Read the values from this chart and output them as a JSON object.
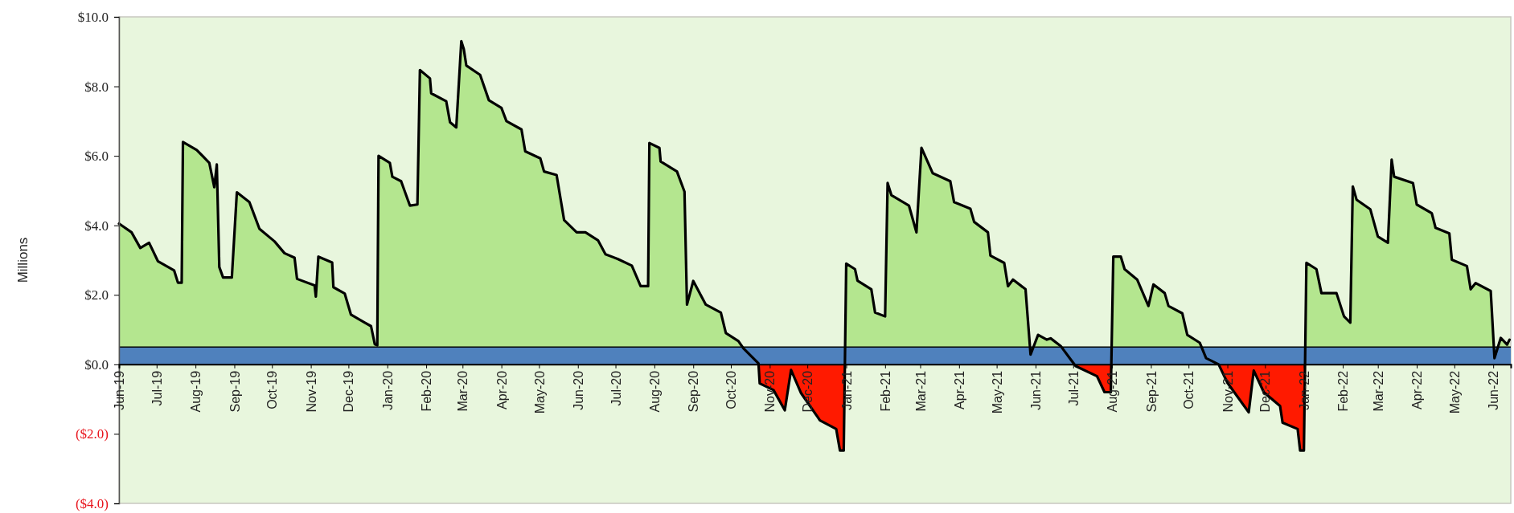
{
  "chart_data": {
    "type": "area",
    "ylabel": "Millions",
    "xlim": [
      "2019-06-01",
      "2022-06-15"
    ],
    "ylim": [
      -4,
      10
    ],
    "yticks": [
      {
        "value": -4,
        "label": "($4.0)"
      },
      {
        "value": -2,
        "label": "($2.0)"
      },
      {
        "value": 0,
        "label": "$0.0"
      },
      {
        "value": 2,
        "label": "$2.0"
      },
      {
        "value": 4,
        "label": "$4.0"
      },
      {
        "value": 6,
        "label": "$6.0"
      },
      {
        "value": 8,
        "label": "$8.0"
      },
      {
        "value": 10,
        "label": "$10.0"
      }
    ],
    "xticks": [
      {
        "value": "2019-06-01",
        "label": "Jun-19"
      },
      {
        "value": "2019-07-01",
        "label": "Jul-19"
      },
      {
        "value": "2019-08-01",
        "label": "Aug-19"
      },
      {
        "value": "2019-09-01",
        "label": "Sep-19"
      },
      {
        "value": "2019-10-01",
        "label": "Oct-19"
      },
      {
        "value": "2019-11-01",
        "label": "Nov-19"
      },
      {
        "value": "2019-12-01",
        "label": "Dec-19"
      },
      {
        "value": "2020-01-01",
        "label": "Jan-20"
      },
      {
        "value": "2020-02-01",
        "label": "Feb-20"
      },
      {
        "value": "2020-03-01",
        "label": "Mar-20"
      },
      {
        "value": "2020-04-01",
        "label": "Apr-20"
      },
      {
        "value": "2020-05-01",
        "label": "May-20"
      },
      {
        "value": "2020-06-01",
        "label": "Jun-20"
      },
      {
        "value": "2020-07-01",
        "label": "Jul-20"
      },
      {
        "value": "2020-08-01",
        "label": "Aug-20"
      },
      {
        "value": "2020-09-01",
        "label": "Sep-20"
      },
      {
        "value": "2020-10-01",
        "label": "Oct-20"
      },
      {
        "value": "2020-11-01",
        "label": "Nov-20"
      },
      {
        "value": "2020-12-01",
        "label": "Dec-20"
      },
      {
        "value": "2021-01-01",
        "label": "Jan-21"
      },
      {
        "value": "2021-02-01",
        "label": "Feb-21"
      },
      {
        "value": "2021-03-01",
        "label": "Mar-21"
      },
      {
        "value": "2021-04-01",
        "label": "Apr-21"
      },
      {
        "value": "2021-05-01",
        "label": "May-21"
      },
      {
        "value": "2021-06-01",
        "label": "Jun-21"
      },
      {
        "value": "2021-07-01",
        "label": "Jul-21"
      },
      {
        "value": "2021-08-01",
        "label": "Aug-21"
      },
      {
        "value": "2021-09-01",
        "label": "Sep-21"
      },
      {
        "value": "2021-10-01",
        "label": "Oct-21"
      },
      {
        "value": "2021-11-01",
        "label": "Nov-21"
      },
      {
        "value": "2021-12-01",
        "label": "Dec-21"
      },
      {
        "value": "2022-01-01",
        "label": "Jan-22"
      },
      {
        "value": "2022-02-01",
        "label": "Feb-22"
      },
      {
        "value": "2022-03-01",
        "label": "Mar-22"
      },
      {
        "value": "2022-04-01",
        "label": "Apr-22"
      },
      {
        "value": "2022-05-01",
        "label": "May-22"
      },
      {
        "value": "2022-06-01",
        "label": "Jun-22"
      }
    ],
    "grid": false,
    "line_style": "solid",
    "bands": [
      {
        "axis": "y",
        "from": 0,
        "to": 0.5,
        "color": "#4f81bd"
      }
    ],
    "ref_lines": [
      {
        "axis": "y",
        "value": 0.5,
        "color": "#000000"
      }
    ],
    "series": [
      {
        "color": "#b4e68f",
        "x": [
          "2019-06-01",
          "2019-06-11",
          "2019-06-18",
          "2019-06-25",
          "2019-07-02",
          "2019-07-15",
          "2019-07-18",
          "2019-07-21",
          "2019-07-22",
          "2019-08-02",
          "2019-08-12",
          "2019-08-16",
          "2019-08-18",
          "2019-08-20",
          "2019-08-23",
          "2019-08-30",
          "2019-09-03",
          "2019-09-13",
          "2019-09-21",
          "2019-10-03",
          "2019-10-11",
          "2019-10-19",
          "2019-10-21",
          "2019-11-04",
          "2019-11-05",
          "2019-11-07",
          "2019-11-18",
          "2019-11-19",
          "2019-11-28",
          "2019-12-03",
          "2019-12-14",
          "2019-12-19",
          "2019-12-22",
          "2019-12-24",
          "2019-12-25",
          "2020-01-03",
          "2020-01-05",
          "2020-01-12",
          "2020-01-19",
          "2020-01-25",
          "2020-01-27",
          "2020-02-04",
          "2020-02-05",
          "2020-02-17",
          "2020-02-20",
          "2020-02-25",
          "2020-02-29",
          "2020-03-02",
          "2020-03-04",
          "2020-03-15",
          "2020-03-22",
          "2020-04-01",
          "2020-04-05",
          "2020-04-17",
          "2020-04-20",
          "2020-05-02",
          "2020-05-05",
          "2020-05-15",
          "2020-05-21",
          "2020-05-31",
          "2020-06-07",
          "2020-06-17",
          "2020-06-23",
          "2020-07-03",
          "2020-07-14",
          "2020-07-21",
          "2020-07-27",
          "2020-07-28",
          "2020-08-05",
          "2020-08-06",
          "2020-08-19",
          "2020-08-25",
          "2020-08-27",
          "2020-09-01",
          "2020-09-11",
          "2020-09-23",
          "2020-09-27",
          "2020-10-07",
          "2020-10-11",
          "2020-10-23",
          "2020-10-24",
          "2020-11-04",
          "2020-11-13",
          "2020-11-18",
          "2020-11-26",
          "2020-12-11",
          "2020-12-24",
          "2020-12-27",
          "2020-12-30",
          "2021-01-01",
          "2021-01-08",
          "2021-01-10",
          "2021-01-21",
          "2021-01-24",
          "2021-02-01",
          "2021-02-03",
          "2021-02-06",
          "2021-02-20",
          "2021-02-26",
          "2021-03-02",
          "2021-03-11",
          "2021-03-25",
          "2021-03-28",
          "2021-04-10",
          "2021-04-13",
          "2021-04-24",
          "2021-04-26",
          "2021-05-07",
          "2021-05-10",
          "2021-05-14",
          "2021-05-24",
          "2021-05-28",
          "2021-06-03",
          "2021-06-10",
          "2021-06-13",
          "2021-06-21",
          "2021-06-29",
          "2021-07-03",
          "2021-07-20",
          "2021-07-26",
          "2021-07-31",
          "2021-08-02",
          "2021-08-08",
          "2021-08-11",
          "2021-08-21",
          "2021-08-30",
          "2021-09-03",
          "2021-09-12",
          "2021-09-15",
          "2021-09-26",
          "2021-09-30",
          "2021-10-10",
          "2021-10-15",
          "2021-10-25",
          "2021-11-01",
          "2021-11-18",
          "2021-11-22",
          "2021-11-30",
          "2021-12-13",
          "2021-12-15",
          "2021-12-27",
          "2021-12-29",
          "2022-01-01",
          "2022-01-03",
          "2022-01-11",
          "2022-01-15",
          "2022-01-27",
          "2022-02-02",
          "2022-02-07",
          "2022-02-09",
          "2022-02-12",
          "2022-02-23",
          "2022-03-01",
          "2022-03-09",
          "2022-03-12",
          "2022-03-14",
          "2022-03-29",
          "2022-04-01",
          "2022-04-13",
          "2022-04-16",
          "2022-04-27",
          "2022-04-29",
          "2022-05-11",
          "2022-05-14",
          "2022-05-18",
          "2022-05-30",
          "2022-06-02",
          "2022-06-07",
          "2022-06-12",
          "2022-06-14"
        ],
        "values": [
          4.05,
          3.8,
          3.35,
          3.5,
          2.97,
          2.7,
          2.35,
          2.35,
          6.4,
          6.17,
          5.8,
          5.1,
          5.75,
          2.8,
          2.5,
          2.5,
          4.95,
          4.67,
          3.9,
          3.54,
          3.2,
          3.07,
          2.46,
          2.27,
          1.95,
          3.1,
          2.93,
          2.22,
          2.04,
          1.43,
          1.2,
          1.1,
          0.58,
          0.55,
          6.0,
          5.8,
          5.4,
          5.27,
          4.57,
          4.6,
          8.47,
          8.23,
          7.8,
          7.57,
          6.97,
          6.82,
          9.3,
          9.07,
          8.6,
          8.33,
          7.6,
          7.38,
          7.0,
          6.76,
          6.13,
          5.93,
          5.55,
          5.45,
          4.15,
          3.8,
          3.8,
          3.57,
          3.17,
          3.03,
          2.84,
          2.25,
          2.25,
          6.37,
          6.23,
          5.84,
          5.55,
          4.97,
          1.72,
          2.4,
          1.72,
          1.49,
          0.9,
          0.67,
          0.46,
          0.03,
          -0.55,
          -0.74,
          -1.32,
          -0.16,
          -0.83,
          -1.61,
          -1.86,
          -2.48,
          -2.48,
          2.9,
          2.74,
          2.41,
          2.16,
          1.49,
          1.38,
          5.22,
          4.87,
          4.57,
          3.8,
          6.23,
          5.5,
          5.27,
          4.67,
          4.48,
          4.1,
          3.8,
          3.13,
          2.92,
          2.25,
          2.44,
          2.16,
          0.28,
          0.85,
          0.71,
          0.75,
          0.53,
          0.14,
          -0.05,
          -0.34,
          -0.8,
          -0.8,
          3.1,
          3.1,
          2.74,
          2.44,
          1.68,
          2.3,
          2.05,
          1.68,
          1.47,
          0.85,
          0.62,
          0.18,
          0.0,
          -0.53,
          -1.38,
          -0.18,
          -0.8,
          -1.2,
          -1.68,
          -1.86,
          -2.48,
          -2.48,
          2.92,
          2.74,
          2.05,
          2.05,
          1.38,
          1.2,
          5.12,
          4.74,
          4.46,
          3.68,
          3.5,
          5.89,
          5.4,
          5.22,
          4.6,
          4.35,
          3.93,
          3.77,
          3.01,
          2.83,
          2.16,
          2.34,
          2.11,
          0.18,
          0.76,
          0.57,
          0.71
        ]
      }
    ]
  }
}
